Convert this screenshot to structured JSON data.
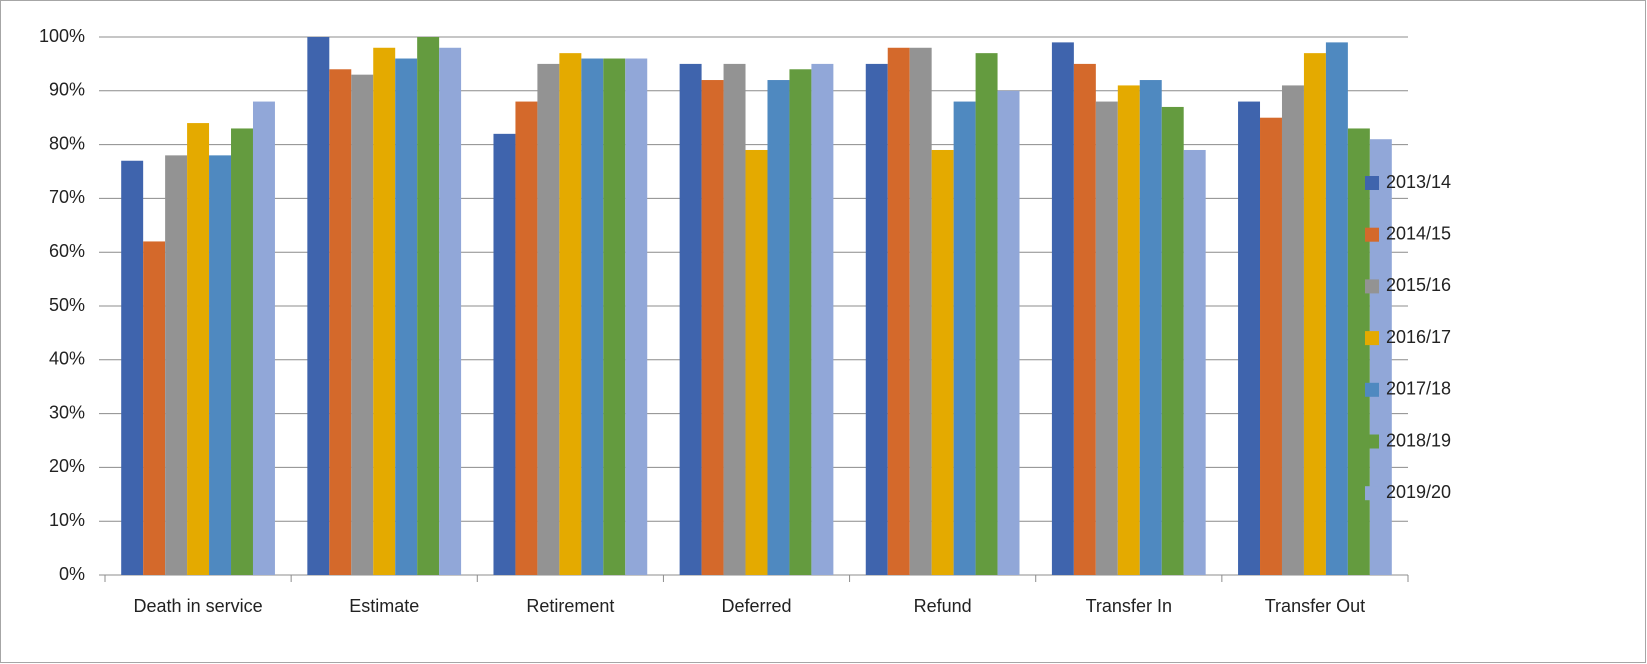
{
  "chart_data": {
    "type": "bar",
    "categories": [
      "Death in service",
      "Estimate",
      "Retirement",
      "Deferred",
      "Refund",
      "Transfer In",
      "Transfer Out"
    ],
    "series": [
      {
        "name": "2013/14",
        "color": "#3f64ad",
        "values": [
          77,
          100,
          82,
          95,
          95,
          99,
          88
        ]
      },
      {
        "name": "2014/15",
        "color": "#d4692b",
        "values": [
          62,
          94,
          88,
          92,
          98,
          95,
          85
        ]
      },
      {
        "name": "2015/16",
        "color": "#939393",
        "values": [
          78,
          93,
          95,
          95,
          98,
          88,
          91
        ]
      },
      {
        "name": "2016/17",
        "color": "#e4aa00",
        "values": [
          84,
          98,
          97,
          79,
          79,
          91,
          97
        ]
      },
      {
        "name": "2017/18",
        "color": "#4f89c0",
        "values": [
          78,
          96,
          96,
          92,
          88,
          92,
          99
        ]
      },
      {
        "name": "2018/19",
        "color": "#649b3f",
        "values": [
          83,
          100,
          96,
          94,
          97,
          87,
          83
        ]
      },
      {
        "name": "2019/20",
        "color": "#91a7d8",
        "values": [
          88,
          98,
          96,
          95,
          90,
          79,
          81
        ]
      }
    ],
    "ylim": [
      0,
      100
    ],
    "yticks": [
      {
        "value": 0,
        "label": "0%"
      },
      {
        "value": 10,
        "label": "10%"
      },
      {
        "value": 20,
        "label": "20%"
      },
      {
        "value": 30,
        "label": "30%"
      },
      {
        "value": 40,
        "label": "40%"
      },
      {
        "value": 50,
        "label": "50%"
      },
      {
        "value": 60,
        "label": "60%"
      },
      {
        "value": 70,
        "label": "70%"
      },
      {
        "value": 80,
        "label": "80%"
      },
      {
        "value": 90,
        "label": "90%"
      },
      {
        "value": 100,
        "label": "100%"
      }
    ],
    "grid": true,
    "legend": "right"
  }
}
